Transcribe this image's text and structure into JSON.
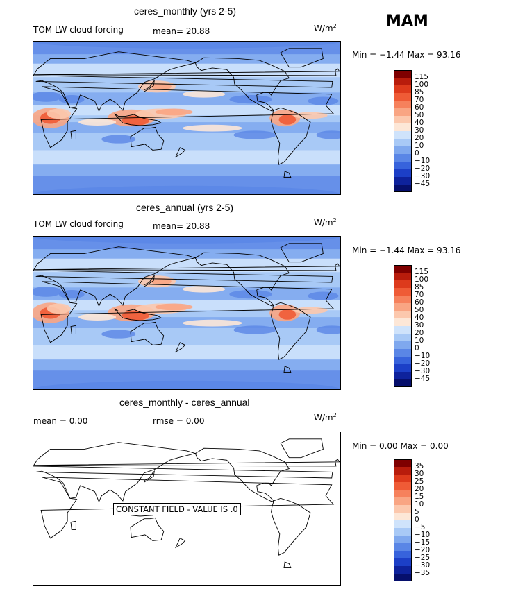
{
  "season": "MAM",
  "panels": [
    {
      "title": "ceres_monthly (yrs 2-5)",
      "field_label": "TOM LW cloud forcing",
      "mean_text": "mean=  20.88",
      "units": "W/m",
      "units_sup": "2",
      "minmax": "Min =  −1.44 Max =  93.16",
      "colorbar_ticks": [
        "115",
        "100",
        "85",
        "70",
        "60",
        "50",
        "40",
        "30",
        "20",
        "10",
        "0",
        "−10",
        "−20",
        "−30",
        "−45"
      ],
      "colors": [
        "#7f0000",
        "#b81c0c",
        "#dd3a1c",
        "#ef5b36",
        "#f6815c",
        "#f9a583",
        "#fcc8ad",
        "#fde7d7",
        "#cfe3fb",
        "#a8c9f6",
        "#7fa8ee",
        "#5a86e6",
        "#3763dc",
        "#1c3fc7",
        "#0e229c",
        "#060f6c"
      ],
      "chart_data": {
        "type": "heatmap",
        "title": "ceres_monthly (yrs 2-5)",
        "variable": "TOM LW cloud forcing",
        "units": "W/m2",
        "mean": 20.88,
        "min": -1.44,
        "max": 93.16,
        "levels": [
          -45,
          -30,
          -20,
          -10,
          0,
          10,
          20,
          30,
          40,
          50,
          60,
          70,
          85,
          100,
          115
        ]
      }
    },
    {
      "title": "ceres_annual (yrs 2-5)",
      "field_label": "TOM LW cloud forcing",
      "mean_text": "mean=  20.88",
      "units": "W/m",
      "units_sup": "2",
      "minmax": "Min =  −1.44 Max =  93.16",
      "colorbar_ticks": [
        "115",
        "100",
        "85",
        "70",
        "60",
        "50",
        "40",
        "30",
        "20",
        "10",
        "0",
        "−10",
        "−20",
        "−30",
        "−45"
      ],
      "colors": [
        "#7f0000",
        "#b81c0c",
        "#dd3a1c",
        "#ef5b36",
        "#f6815c",
        "#f9a583",
        "#fcc8ad",
        "#fde7d7",
        "#cfe3fb",
        "#a8c9f6",
        "#7fa8ee",
        "#5a86e6",
        "#3763dc",
        "#1c3fc7",
        "#0e229c",
        "#060f6c"
      ],
      "chart_data": {
        "type": "heatmap",
        "title": "ceres_annual (yrs 2-5)",
        "variable": "TOM LW cloud forcing",
        "units": "W/m2",
        "mean": 20.88,
        "min": -1.44,
        "max": 93.16,
        "levels": [
          -45,
          -30,
          -20,
          -10,
          0,
          10,
          20,
          30,
          40,
          50,
          60,
          70,
          85,
          100,
          115
        ]
      }
    },
    {
      "title": "ceres_monthly - ceres_annual",
      "mean_text": "mean =    0.00",
      "rmse_text": "rmse =    0.00",
      "units": "W/m",
      "units_sup": "2",
      "minmax": "Min =   0.00 Max =   0.00",
      "note": "CONSTANT FIELD - VALUE IS .0",
      "colorbar_ticks": [
        "35",
        "30",
        "25",
        "20",
        "15",
        "10",
        "5",
        "0",
        "−5",
        "−10",
        "−15",
        "−20",
        "−25",
        "−30",
        "−35"
      ],
      "colors": [
        "#7f0000",
        "#b81c0c",
        "#dd3a1c",
        "#ef5b36",
        "#f6815c",
        "#f9a583",
        "#fcc8ad",
        "#fde7d7",
        "#cfe3fb",
        "#a8c9f6",
        "#7fa8ee",
        "#5a86e6",
        "#3763dc",
        "#1c3fc7",
        "#0e229c",
        "#060f6c"
      ],
      "chart_data": {
        "type": "heatmap",
        "title": "ceres_monthly - ceres_annual",
        "units": "W/m2",
        "mean": 0.0,
        "rmse": 0.0,
        "min": 0.0,
        "max": 0.0,
        "levels": [
          -35,
          -30,
          -25,
          -20,
          -15,
          -10,
          -5,
          0,
          5,
          10,
          15,
          20,
          25,
          30,
          35
        ]
      }
    }
  ]
}
